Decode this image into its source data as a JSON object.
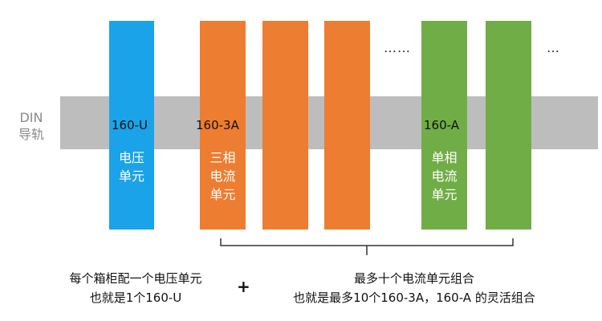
{
  "rail": {
    "label_line1": "DIN",
    "label_line2": "导轨"
  },
  "units": [
    {
      "tag": "160-U",
      "name_lines": [
        "电压",
        "单元"
      ],
      "color": "#1aa3e8"
    },
    {
      "tag": "160-3A",
      "name_lines": [
        "三相",
        "电流",
        "单元"
      ],
      "color": "#ed7d31"
    },
    {
      "tag": "",
      "name_lines": [],
      "color": "#ed7d31"
    },
    {
      "tag": "",
      "name_lines": [],
      "color": "#ed7d31"
    },
    {
      "tag": "160-A",
      "name_lines": [
        "单相",
        "电流",
        "单元"
      ],
      "color": "#70ad47"
    },
    {
      "tag": "",
      "name_lines": [],
      "color": "#70ad47"
    }
  ],
  "ellipses": [
    "……",
    "…"
  ],
  "notes": {
    "left_line1": "每个箱柜配一个电压单元",
    "left_line2": "也就是1个160-U",
    "plus": "+",
    "right_line1": "最多十个电流单元组合",
    "right_line2": "也就是最多10个160-3A，160-A 的灵活组合"
  }
}
